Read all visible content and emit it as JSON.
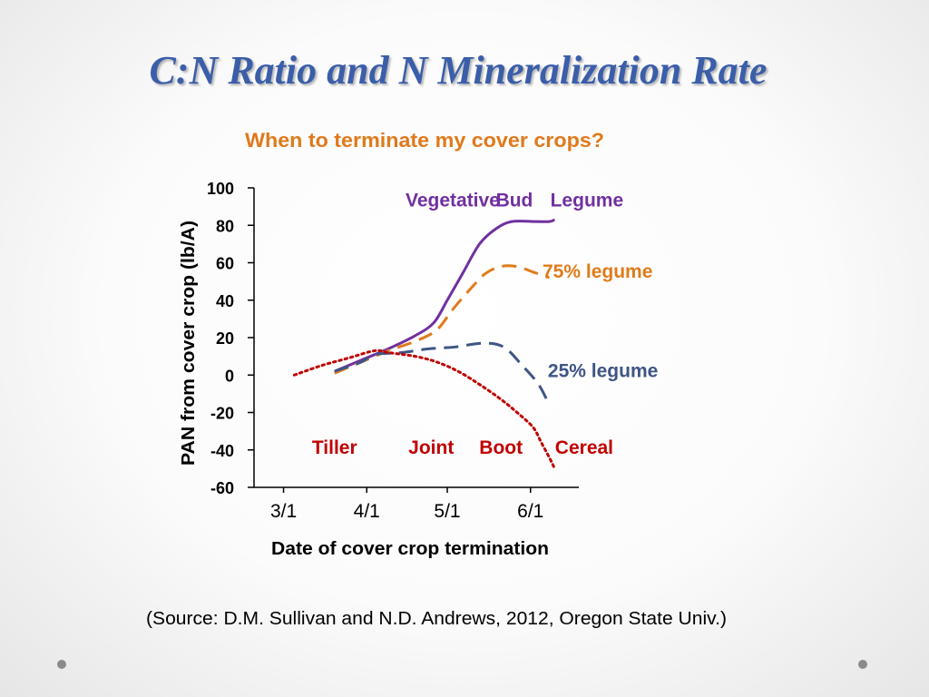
{
  "slide": {
    "title": "C:N Ratio and N Mineralization Rate",
    "source": "(Source: D.M. Sullivan and N.D. Andrews, 2012, Oregon State Univ.)"
  },
  "colors": {
    "title": "#3b5ea9",
    "subtitle": "#e0791b",
    "legume": "#7030a0",
    "legume75": "#e07b1a",
    "legume25": "#3e5585",
    "cereal": "#c00000",
    "axis": "#000000"
  },
  "chart_data": {
    "type": "line",
    "title": "When to terminate my cover crops?",
    "xlabel": "Date of cover crop termination",
    "ylabel": "PAN from cover crop (lb/A)",
    "ylim": [
      -60,
      100
    ],
    "yticks": [
      100,
      80,
      60,
      40,
      20,
      0,
      -20,
      -40,
      -60
    ],
    "xticks": [
      {
        "label": "3/1",
        "value": 1
      },
      {
        "label": "4/1",
        "value": 32
      },
      {
        "label": "5/1",
        "value": 62
      },
      {
        "label": "6/1",
        "value": 93
      }
    ],
    "xlim": [
      -10,
      111
    ],
    "series": [
      {
        "name": "Legume",
        "color_key": "legume",
        "style": "solid",
        "points": [
          [
            20,
            2
          ],
          [
            30,
            8
          ],
          [
            40,
            14
          ],
          [
            50,
            21
          ],
          [
            57,
            28
          ],
          [
            62,
            40
          ],
          [
            68,
            55
          ],
          [
            74,
            70
          ],
          [
            80,
            78
          ],
          [
            86,
            82
          ],
          [
            95,
            82
          ],
          [
            100,
            82
          ],
          [
            102,
            83
          ]
        ]
      },
      {
        "name": "75% legume",
        "color_key": "legume75",
        "style": "dashed",
        "points": [
          [
            20,
            1
          ],
          [
            30,
            7
          ],
          [
            40,
            13
          ],
          [
            50,
            18
          ],
          [
            58,
            24
          ],
          [
            64,
            35
          ],
          [
            70,
            45
          ],
          [
            76,
            54
          ],
          [
            82,
            58
          ],
          [
            88,
            58
          ],
          [
            94,
            55
          ],
          [
            100,
            52
          ]
        ]
      },
      {
        "name": "25% legume",
        "color_key": "legume25",
        "style": "dashed",
        "points": [
          [
            20,
            2
          ],
          [
            30,
            7
          ],
          [
            35,
            11
          ],
          [
            45,
            12
          ],
          [
            55,
            14
          ],
          [
            65,
            15
          ],
          [
            75,
            17
          ],
          [
            83,
            15
          ],
          [
            90,
            5
          ],
          [
            96,
            -5
          ],
          [
            100,
            -16
          ]
        ]
      },
      {
        "name": "Cereal",
        "color_key": "cereal",
        "style": "dotted",
        "points": [
          [
            5,
            0
          ],
          [
            15,
            5
          ],
          [
            25,
            9
          ],
          [
            35,
            13
          ],
          [
            40,
            12
          ],
          [
            50,
            10
          ],
          [
            58,
            7
          ],
          [
            66,
            2
          ],
          [
            74,
            -5
          ],
          [
            82,
            -13
          ],
          [
            88,
            -20
          ],
          [
            94,
            -28
          ],
          [
            97,
            -36
          ],
          [
            100,
            -44
          ],
          [
            102,
            -50
          ]
        ]
      }
    ],
    "annotations": [
      {
        "text": "Vegetative",
        "x": 64,
        "y": 90,
        "color_key": "legume"
      },
      {
        "text": "Bud",
        "x": 87,
        "y": 90,
        "color_key": "legume"
      },
      {
        "text": "Legume",
        "x": 114,
        "y": 90,
        "color_key": "legume"
      },
      {
        "text": "75% legume",
        "x": 118,
        "y": 52,
        "color_key": "legume75"
      },
      {
        "text": "25% legume",
        "x": 120,
        "y": -1,
        "color_key": "legume25"
      },
      {
        "text": "Tiller",
        "x": 20,
        "y": -42,
        "color_key": "cereal"
      },
      {
        "text": "Joint",
        "x": 56,
        "y": -42,
        "color_key": "cereal"
      },
      {
        "text": "Boot",
        "x": 82,
        "y": -42,
        "color_key": "cereal"
      },
      {
        "text": "Cereal",
        "x": 113,
        "y": -42,
        "color_key": "cereal"
      }
    ]
  }
}
